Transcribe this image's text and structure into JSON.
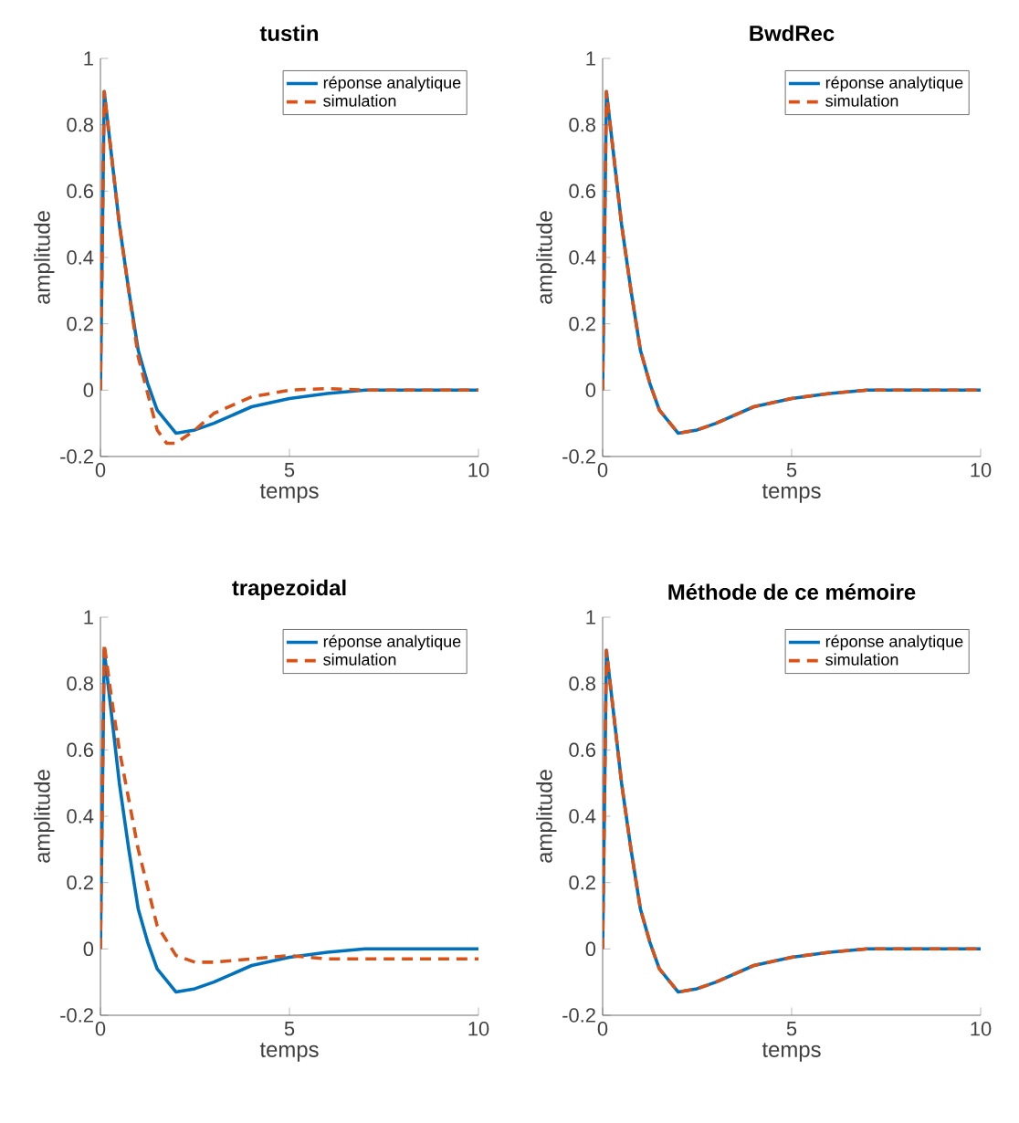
{
  "chart_data": [
    {
      "type": "line",
      "title": "tustin",
      "xlabel": "temps",
      "ylabel": "amplitude",
      "xlim": [
        0,
        10
      ],
      "ylim": [
        -0.2,
        1
      ],
      "xticks": [
        0,
        5,
        10
      ],
      "yticks": [
        -0.2,
        0,
        0.2,
        0.4,
        0.6,
        0.8,
        1
      ],
      "legend": "top right",
      "series": [
        {
          "name": "réponse analytique",
          "color": "#0072bd",
          "line_style": "solid",
          "x": [
            0,
            0.1,
            0.3,
            0.5,
            0.75,
            1.0,
            1.25,
            1.5,
            2,
            2.5,
            3,
            4,
            5,
            6,
            7,
            10
          ],
          "values": [
            0,
            0.9,
            0.7,
            0.5,
            0.3,
            0.12,
            0.02,
            -0.06,
            -0.13,
            -0.12,
            -0.1,
            -0.05,
            -0.025,
            -0.01,
            0,
            0
          ]
        },
        {
          "name": "simulation",
          "color": "#d95319",
          "line_style": "dashed",
          "x": [
            0,
            0.1,
            0.5,
            1.0,
            1.5,
            1.75,
            2,
            2.5,
            3,
            4,
            5,
            6,
            7,
            10
          ],
          "values": [
            0,
            0.9,
            0.5,
            0.1,
            -0.12,
            -0.16,
            -0.16,
            -0.12,
            -0.07,
            -0.02,
            0,
            0.005,
            0,
            0
          ]
        }
      ]
    },
    {
      "type": "line",
      "title": "BwdRec",
      "xlabel": "temps",
      "ylabel": "amplitude",
      "xlim": [
        0,
        10
      ],
      "ylim": [
        -0.2,
        1
      ],
      "xticks": [
        0,
        5,
        10
      ],
      "yticks": [
        -0.2,
        0,
        0.2,
        0.4,
        0.6,
        0.8,
        1
      ],
      "legend": "top right",
      "series": [
        {
          "name": "réponse analytique",
          "color": "#0072bd",
          "line_style": "solid",
          "x": [
            0,
            0.1,
            0.3,
            0.5,
            0.75,
            1.0,
            1.25,
            1.5,
            2,
            2.5,
            3,
            4,
            5,
            6,
            7,
            10
          ],
          "values": [
            0,
            0.9,
            0.7,
            0.5,
            0.3,
            0.12,
            0.02,
            -0.06,
            -0.13,
            -0.12,
            -0.1,
            -0.05,
            -0.025,
            -0.01,
            0,
            0
          ]
        },
        {
          "name": "simulation",
          "color": "#d95319",
          "line_style": "dashed",
          "x": [
            0,
            0.1,
            0.3,
            0.5,
            0.75,
            1.0,
            1.25,
            1.5,
            2,
            2.5,
            3,
            4,
            5,
            6,
            7,
            10
          ],
          "values": [
            0,
            0.9,
            0.7,
            0.5,
            0.3,
            0.12,
            0.02,
            -0.06,
            -0.13,
            -0.12,
            -0.1,
            -0.05,
            -0.025,
            -0.01,
            0,
            0
          ]
        }
      ]
    },
    {
      "type": "line",
      "title": "trapezoidal",
      "xlabel": "temps",
      "ylabel": "amplitude",
      "xlim": [
        0,
        10
      ],
      "ylim": [
        -0.2,
        1
      ],
      "xticks": [
        0,
        5,
        10
      ],
      "yticks": [
        -0.2,
        0,
        0.2,
        0.4,
        0.6,
        0.8,
        1
      ],
      "legend": "top right",
      "series": [
        {
          "name": "réponse analytique",
          "color": "#0072bd",
          "line_style": "solid",
          "x": [
            0,
            0.1,
            0.3,
            0.5,
            0.75,
            1.0,
            1.25,
            1.5,
            2,
            2.5,
            3,
            4,
            5,
            6,
            7,
            10
          ],
          "values": [
            0,
            0.9,
            0.7,
            0.5,
            0.3,
            0.12,
            0.02,
            -0.06,
            -0.13,
            -0.12,
            -0.1,
            -0.05,
            -0.025,
            -0.01,
            0,
            0
          ]
        },
        {
          "name": "simulation",
          "color": "#d95319",
          "line_style": "dashed",
          "x": [
            0,
            0.1,
            0.3,
            0.5,
            1.0,
            1.5,
            2.0,
            2.5,
            3,
            4,
            5,
            6,
            10
          ],
          "values": [
            0,
            0.92,
            0.75,
            0.6,
            0.3,
            0.07,
            -0.02,
            -0.04,
            -0.04,
            -0.03,
            -0.02,
            -0.03,
            -0.03
          ]
        }
      ]
    },
    {
      "type": "line",
      "title": "Méthode de ce mémoire",
      "xlabel": "temps",
      "ylabel": "amplitude",
      "xlim": [
        0,
        10
      ],
      "ylim": [
        -0.2,
        1
      ],
      "xticks": [
        0,
        5,
        10
      ],
      "yticks": [
        -0.2,
        0,
        0.2,
        0.4,
        0.6,
        0.8,
        1
      ],
      "legend": "top right",
      "series": [
        {
          "name": "réponse analytique",
          "color": "#0072bd",
          "line_style": "solid",
          "x": [
            0,
            0.1,
            0.3,
            0.5,
            0.75,
            1.0,
            1.25,
            1.5,
            2,
            2.5,
            3,
            4,
            5,
            6,
            7,
            10
          ],
          "values": [
            0,
            0.9,
            0.7,
            0.5,
            0.3,
            0.12,
            0.02,
            -0.06,
            -0.13,
            -0.12,
            -0.1,
            -0.05,
            -0.025,
            -0.01,
            0,
            0
          ]
        },
        {
          "name": "simulation",
          "color": "#d95319",
          "line_style": "dashed",
          "x": [
            0,
            0.1,
            0.3,
            0.5,
            0.75,
            1.0,
            1.25,
            1.5,
            2,
            2.5,
            3,
            4,
            5,
            6,
            7,
            10
          ],
          "values": [
            0,
            0.9,
            0.7,
            0.5,
            0.3,
            0.12,
            0.02,
            -0.06,
            -0.13,
            -0.12,
            -0.1,
            -0.05,
            -0.025,
            -0.01,
            0,
            0
          ]
        }
      ]
    }
  ]
}
